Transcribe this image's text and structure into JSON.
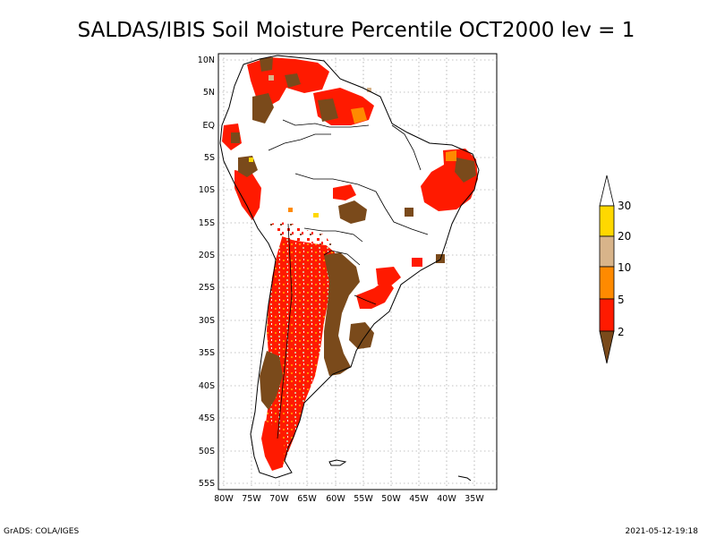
{
  "title": "SALDAS/IBIS Soil Moisture Percentile OCT2000 lev = 1",
  "footer_left": "GrADS: COLA/IGES",
  "footer_right": "2021-05-12-19:18",
  "map": {
    "lat_labels": [
      "10N",
      "5N",
      "EQ",
      "5S",
      "10S",
      "15S",
      "20S",
      "25S",
      "30S",
      "35S",
      "40S",
      "45S",
      "50S",
      "55S"
    ],
    "lon_labels": [
      "80W",
      "75W",
      "70W",
      "65W",
      "60W",
      "55W",
      "50W",
      "45W",
      "40W",
      "35W"
    ]
  },
  "colorbar": {
    "labels": [
      "2",
      "5",
      "10",
      "20",
      "30"
    ],
    "colors": {
      "brown": "#7a4a1b",
      "red": "#ff1a00",
      "orange": "#ff8a00",
      "tan": "#d8b48a",
      "yellow": "#ffd800"
    }
  }
}
